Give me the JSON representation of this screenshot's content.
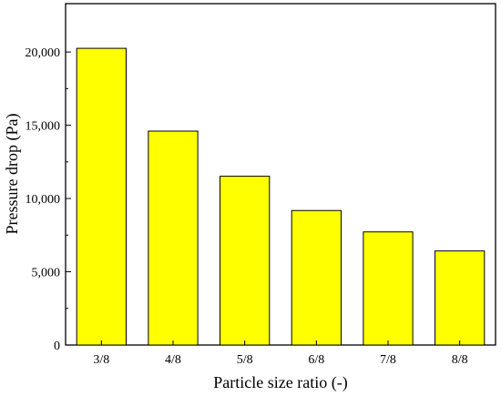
{
  "chart_data": {
    "type": "bar",
    "title": "",
    "xlabel": "Particle size ratio (-)",
    "ylabel": "Pressure drop (Pa)",
    "categories": [
      "3/8",
      "4/8",
      "5/8",
      "6/8",
      "7/8",
      "8/8"
    ],
    "values": [
      20250,
      14600,
      11520,
      9180,
      7720,
      6420
    ],
    "ylim": [
      0,
      23300
    ],
    "yticks": [
      0,
      5000,
      10000,
      15000,
      20000
    ],
    "ytick_labels": [
      "0",
      "5,000",
      "10,000",
      "15,000",
      "20,000"
    ],
    "grid": false,
    "legend": "none",
    "colors": {
      "bar_fill": "#ffff00",
      "bar_stroke": "#000000",
      "axis": "#000000"
    }
  }
}
